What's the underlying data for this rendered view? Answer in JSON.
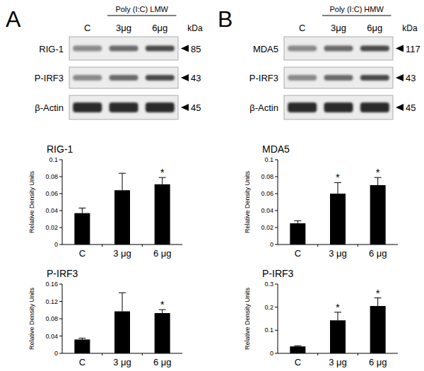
{
  "blots": [
    {
      "panel": "A",
      "treatment": "Poly (I:C) LMW",
      "lanes": [
        "C",
        "3μg",
        "6μg"
      ],
      "unit": "kDa",
      "rows": [
        {
          "protein": "RIG-1",
          "kda": 85
        },
        {
          "protein": "P-IRF3",
          "kda": 43
        },
        {
          "protein": "β-Actin",
          "kda": 45
        }
      ]
    },
    {
      "panel": "B",
      "treatment": "Poly (I:C) HMW",
      "lanes": [
        "C",
        "3μg",
        "6μg"
      ],
      "unit": "kDa",
      "rows": [
        {
          "protein": "MDA5",
          "kda": 117
        },
        {
          "protein": "P-IRF3",
          "kda": 43
        },
        {
          "protein": "β-Actin",
          "kda": 45
        }
      ]
    }
  ],
  "chart_data": [
    {
      "type": "bar",
      "title": "RIG-1",
      "ylabel": "Relative Density Units",
      "categories": [
        "C",
        "3 μg",
        "6 μg"
      ],
      "values": [
        0.037,
        0.064,
        0.071
      ],
      "errors": [
        0.006,
        0.02,
        0.008
      ],
      "significance": [
        null,
        null,
        "*"
      ],
      "color": "#000000",
      "ylim": [
        0,
        0.1
      ],
      "yticks": [
        0,
        0.02,
        0.04,
        0.06,
        0.08,
        0.1
      ]
    },
    {
      "type": "bar",
      "title": "P-IRF3",
      "ylabel": "Relative Density Units",
      "categories": [
        "C",
        "3 μg",
        "6 μg"
      ],
      "values": [
        0.032,
        0.097,
        0.093
      ],
      "errors": [
        0.003,
        0.043,
        0.008
      ],
      "significance": [
        null,
        null,
        "*"
      ],
      "color": "#000000",
      "ylim": [
        0,
        0.16
      ],
      "yticks": [
        0,
        0.04,
        0.08,
        0.12,
        0.16
      ]
    },
    {
      "type": "bar",
      "title": "MDA5",
      "ylabel": "Relative Density Units",
      "categories": [
        "C",
        "3 μg",
        "6 μg"
      ],
      "values": [
        0.025,
        0.06,
        0.07
      ],
      "errors": [
        0.003,
        0.013,
        0.009
      ],
      "significance": [
        null,
        "*",
        "*"
      ],
      "color": "#000000",
      "ylim": [
        0,
        0.1
      ],
      "yticks": [
        0,
        0.02,
        0.04,
        0.06,
        0.08,
        0.1
      ]
    },
    {
      "type": "bar",
      "title": "P-IRF3",
      "ylabel": "Relative Density Units",
      "categories": [
        "C",
        "3 μg",
        "6 μg"
      ],
      "values": [
        0.03,
        0.143,
        0.205
      ],
      "errors": [
        0.003,
        0.035,
        0.035
      ],
      "significance": [
        null,
        "*",
        "*"
      ],
      "color": "#000000",
      "ylim": [
        0,
        0.3
      ],
      "yticks": [
        0,
        0.1,
        0.2,
        0.3
      ]
    }
  ]
}
